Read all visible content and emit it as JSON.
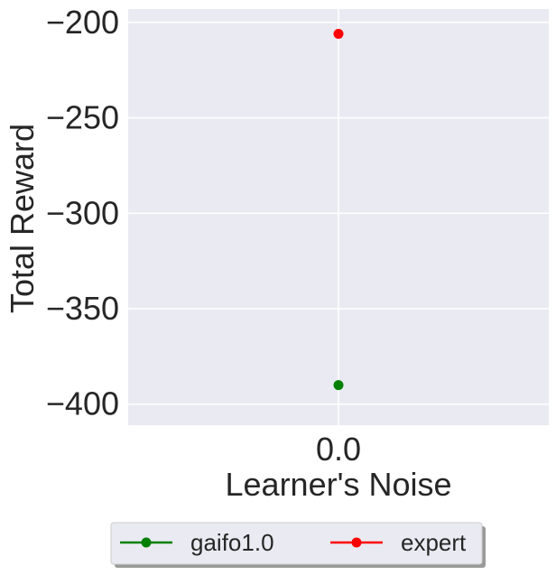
{
  "chart_data": {
    "type": "line",
    "xlabel": "Learner's Noise",
    "ylabel": "Total Reward",
    "x": [
      0.0
    ],
    "x_tick_labels": [
      "0.0"
    ],
    "y_ticks": [
      -200,
      -250,
      -300,
      -350,
      -400
    ],
    "y_tick_labels": [
      "−200",
      "−250",
      "−300",
      "−350",
      "−400"
    ],
    "ylim": [
      -411,
      -193
    ],
    "grid": true,
    "legend_position": "bottom-center",
    "series": [
      {
        "name": "gaifo1.0",
        "values": [
          -390
        ],
        "color": "#008000"
      },
      {
        "name": "expert",
        "values": [
          -206
        ],
        "color": "#ff0000"
      }
    ]
  },
  "colors": {
    "plot_background": "#eaeaf2",
    "grid": "#ffffff",
    "text": "#262626"
  }
}
